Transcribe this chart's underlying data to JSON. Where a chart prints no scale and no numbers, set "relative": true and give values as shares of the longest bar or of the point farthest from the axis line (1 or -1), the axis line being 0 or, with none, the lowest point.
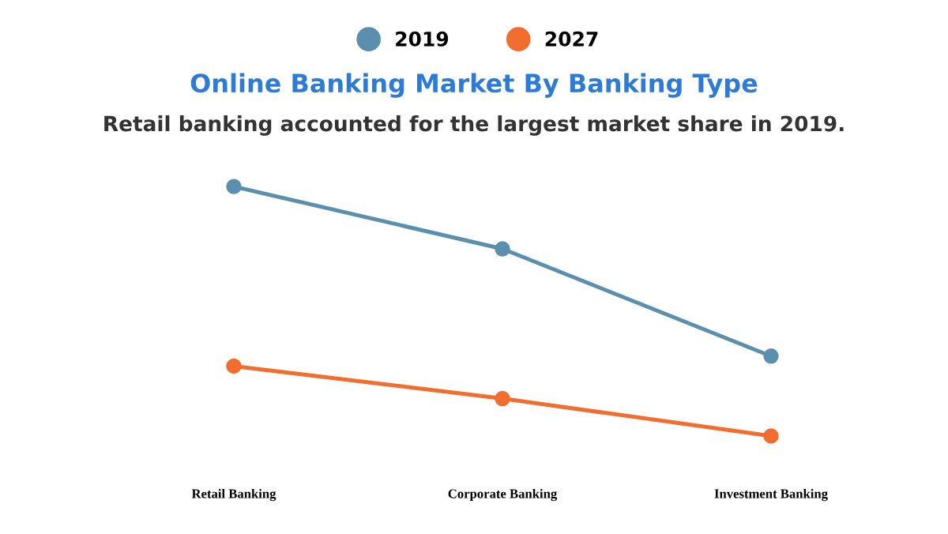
{
  "chart_data": {
    "type": "line",
    "title": "Online Banking Market By Banking Type",
    "subtitle": "Retail banking accounted for the largest market share in 2019.",
    "relative": true,
    "categories": [
      "Retail Banking",
      "Corporate Banking",
      "Investment Banking"
    ],
    "marker": "circle",
    "line_style": "solid",
    "grid": false,
    "legend": "top",
    "series": [
      {
        "name": "2019",
        "color": "#5a8fae",
        "values": [
          1,
          0.75,
          0.32
        ]
      },
      {
        "name": "2027",
        "color": "#f26d2e",
        "values": [
          0.28,
          0.15,
          0
        ]
      }
    ]
  }
}
